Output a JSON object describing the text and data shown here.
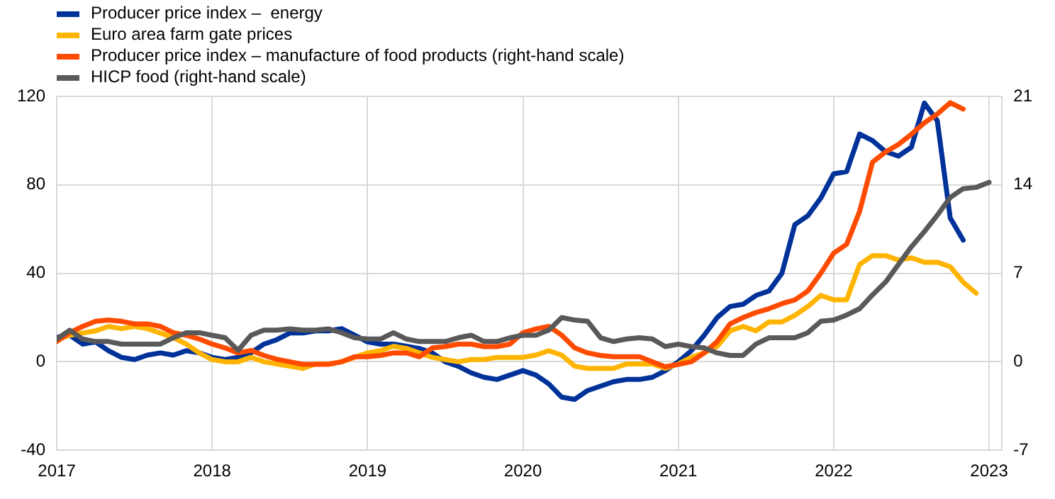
{
  "chart_data": {
    "type": "line",
    "x": [
      "2017-01",
      "2017-02",
      "2017-03",
      "2017-04",
      "2017-05",
      "2017-06",
      "2017-07",
      "2017-08",
      "2017-09",
      "2017-10",
      "2017-11",
      "2017-12",
      "2018-01",
      "2018-02",
      "2018-03",
      "2018-04",
      "2018-05",
      "2018-06",
      "2018-07",
      "2018-08",
      "2018-09",
      "2018-10",
      "2018-11",
      "2018-12",
      "2019-01",
      "2019-02",
      "2019-03",
      "2019-04",
      "2019-05",
      "2019-06",
      "2019-07",
      "2019-08",
      "2019-09",
      "2019-10",
      "2019-11",
      "2019-12",
      "2020-01",
      "2020-02",
      "2020-03",
      "2020-04",
      "2020-05",
      "2020-06",
      "2020-07",
      "2020-08",
      "2020-09",
      "2020-10",
      "2020-11",
      "2020-12",
      "2021-01",
      "2021-02",
      "2021-03",
      "2021-04",
      "2021-05",
      "2021-06",
      "2021-07",
      "2021-08",
      "2021-09",
      "2021-10",
      "2021-11",
      "2021-12",
      "2022-01",
      "2022-02",
      "2022-03",
      "2022-04",
      "2022-05",
      "2022-06",
      "2022-07",
      "2022-08",
      "2022-09",
      "2022-10",
      "2022-11",
      "2022-12",
      "2023-01"
    ],
    "series": [
      {
        "name": "Producer price index –  energy",
        "color": "#003299",
        "values": [
          11,
          12,
          8,
          9,
          5,
          2,
          1,
          3,
          4,
          3,
          5,
          4,
          2,
          1,
          2,
          4,
          8,
          10,
          13,
          13,
          14,
          14,
          15,
          12,
          9,
          8,
          8,
          7,
          6,
          4,
          0,
          -2,
          -5,
          -7,
          -8,
          -6,
          -4,
          -6,
          -10,
          -16,
          -17,
          -13,
          -11,
          -9,
          -8,
          -8,
          -7,
          -4,
          0,
          5,
          12,
          20,
          25,
          26,
          30,
          32,
          40,
          62,
          66,
          74,
          85,
          86,
          103,
          100,
          95,
          93,
          97,
          117,
          109,
          65,
          55,
          null,
          null
        ]
      },
      {
        "name": "Euro area farm gate prices",
        "color": "#ffb400",
        "values": [
          10,
          12,
          13,
          14,
          16,
          15,
          16,
          15,
          13,
          11,
          8,
          4,
          1,
          0,
          0,
          2,
          0,
          -1,
          -2,
          -3,
          -1,
          -1,
          0,
          2,
          4,
          5,
          7,
          6,
          4,
          2,
          1,
          0,
          1,
          1,
          2,
          2,
          2,
          3,
          5,
          3,
          -2,
          -3,
          -3,
          -3,
          -1,
          -1,
          -1,
          -3,
          -1,
          2,
          4,
          7,
          14,
          16,
          14,
          18,
          18,
          21,
          25,
          30,
          28,
          28,
          44,
          48,
          48,
          46,
          47,
          45,
          45,
          43,
          36,
          31,
          null
        ]
      },
      {
        "name": "Producer price index – manufacture of food products (right-hand scale)",
        "color": "#ff4b00",
        "axis": "y2",
        "values": [
          1.6,
          2.3,
          2.8,
          3.2,
          3.3,
          3.2,
          3.0,
          3.0,
          2.8,
          2.3,
          2.1,
          1.8,
          1.4,
          1.1,
          0.7,
          0.9,
          0.5,
          0.2,
          0,
          -0.2,
          -0.2,
          -0.2,
          0,
          0.4,
          0.4,
          0.5,
          0.7,
          0.7,
          0.4,
          1.1,
          1.2,
          1.4,
          1.4,
          1.2,
          1.2,
          1.4,
          2.3,
          2.6,
          2.8,
          2.1,
          1.1,
          0.7,
          0.5,
          0.4,
          0.4,
          0.4,
          0,
          -0.4,
          -0.2,
          0,
          0.7,
          1.6,
          3.0,
          3.5,
          3.9,
          4.2,
          4.6,
          4.9,
          5.6,
          7.0,
          8.6,
          9.3,
          11.9,
          15.8,
          16.6,
          17.2,
          18.0,
          18.9,
          19.6,
          20.5,
          20.0,
          null,
          null
        ]
      },
      {
        "name": "HICP food (right-hand scale)",
        "color": "#595959",
        "axis": "y2",
        "values": [
          1.8,
          2.5,
          1.8,
          1.6,
          1.6,
          1.4,
          1.4,
          1.4,
          1.4,
          1.9,
          2.3,
          2.3,
          2.1,
          1.9,
          0.9,
          2.1,
          2.5,
          2.5,
          2.6,
          2.5,
          2.5,
          2.6,
          2.3,
          1.9,
          1.8,
          1.8,
          2.3,
          1.8,
          1.6,
          1.6,
          1.6,
          1.9,
          2.1,
          1.6,
          1.6,
          1.9,
          2.1,
          2.1,
          2.5,
          3.5,
          3.3,
          3.2,
          1.9,
          1.6,
          1.8,
          1.9,
          1.8,
          1.2,
          1.4,
          1.2,
          1.1,
          0.7,
          0.5,
          0.5,
          1.4,
          1.9,
          1.9,
          1.9,
          2.3,
          3.2,
          3.3,
          3.7,
          4.2,
          5.3,
          6.3,
          7.7,
          9.1,
          10.3,
          11.6,
          13.0,
          13.7,
          13.8,
          14.2
        ]
      }
    ],
    "xlim": [
      "2017-01",
      "2023-02"
    ],
    "xticks": [
      {
        "value": "2017-01",
        "label": "2017"
      },
      {
        "value": "2018-01",
        "label": "2018"
      },
      {
        "value": "2019-01",
        "label": "2019"
      },
      {
        "value": "2020-01",
        "label": "2020"
      },
      {
        "value": "2021-01",
        "label": "2021"
      },
      {
        "value": "2022-01",
        "label": "2022"
      },
      {
        "value": "2023-01",
        "label": "2023"
      }
    ],
    "ylim": [
      -40,
      120
    ],
    "yticks": [
      -40,
      0,
      40,
      80,
      120
    ],
    "y2lim": [
      -7,
      21
    ],
    "y2ticks": [
      -7,
      0,
      7,
      14,
      21
    ],
    "grid": true,
    "legend": "top left",
    "marker": "none",
    "line_style": "solid"
  }
}
